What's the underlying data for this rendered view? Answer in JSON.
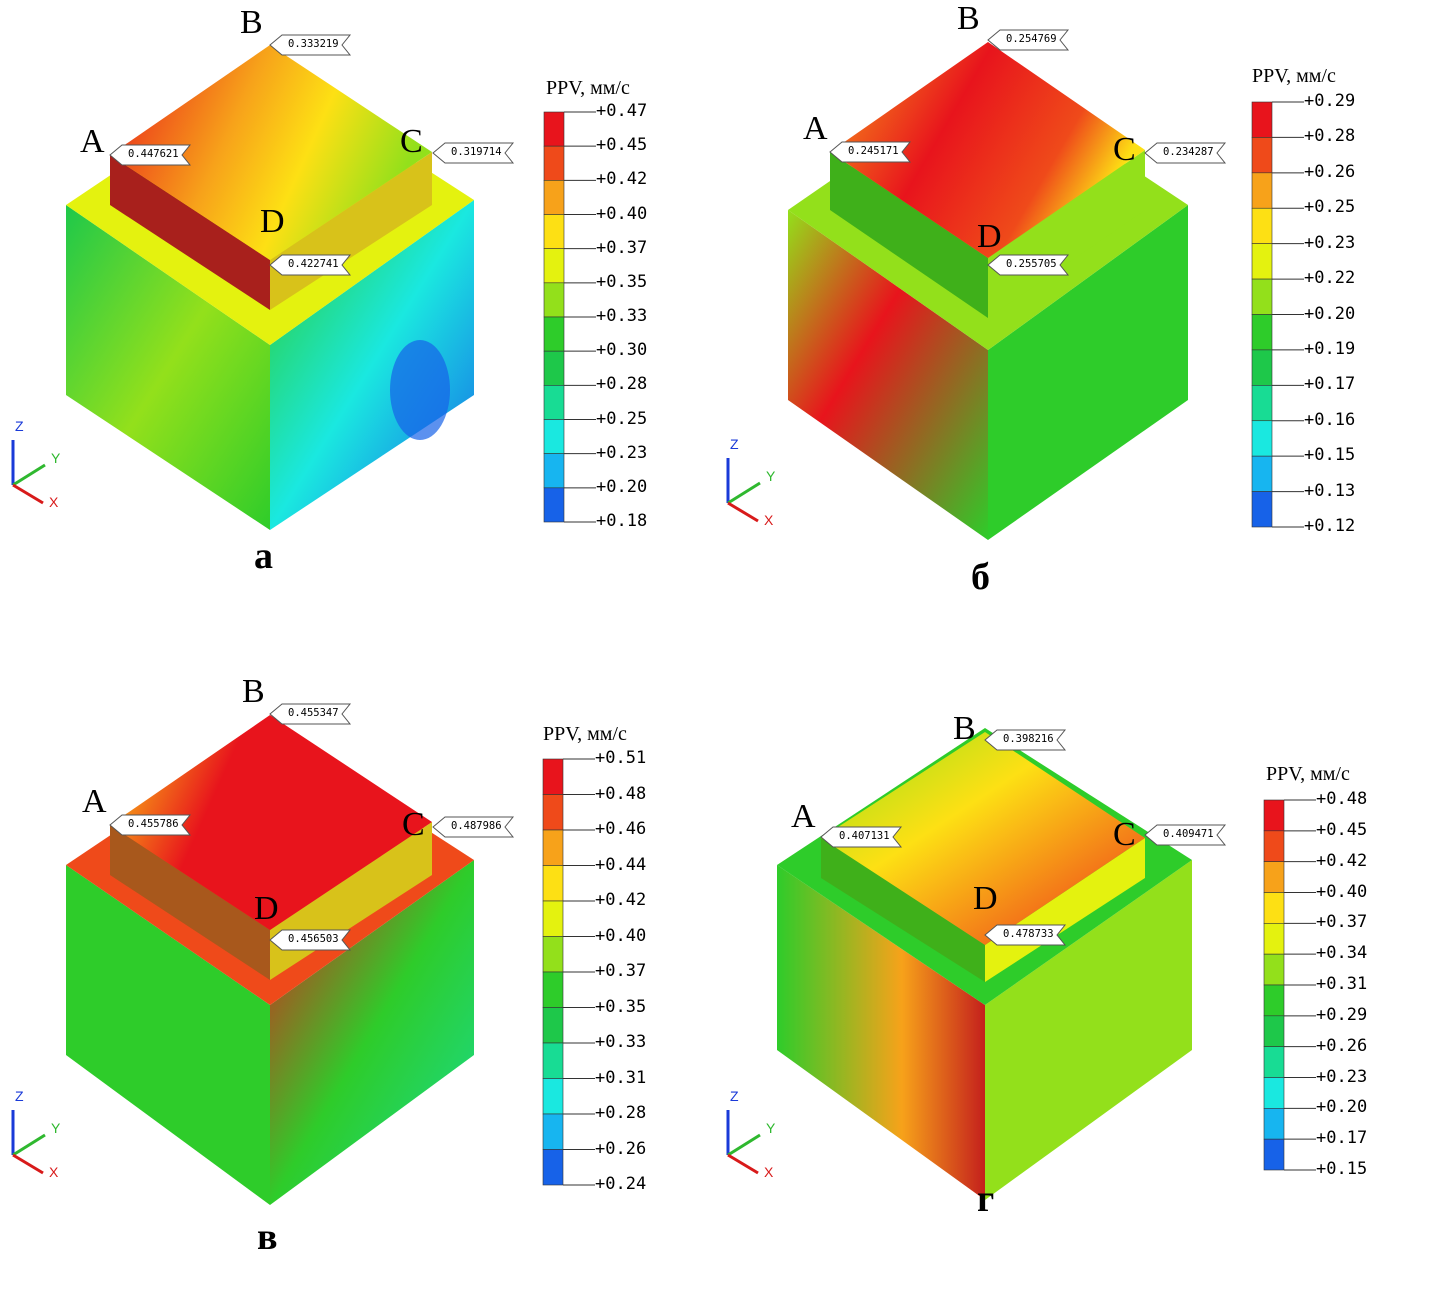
{
  "panels": [
    {
      "label": "а",
      "legend": {
        "title": "PPV, мм/с",
        "ticks": [
          "+0.47",
          "+0.45",
          "+0.42",
          "+0.40",
          "+0.37",
          "+0.35",
          "+0.33",
          "+0.30",
          "+0.28",
          "+0.25",
          "+0.23",
          "+0.20",
          "+0.18"
        ]
      },
      "points": [
        {
          "name": "A",
          "value": "0.447621"
        },
        {
          "name": "B",
          "value": "0.333219"
        },
        {
          "name": "C",
          "value": "0.319714"
        },
        {
          "name": "D",
          "value": "0.422741"
        }
      ]
    },
    {
      "label": "б",
      "legend": {
        "title": "PPV, мм/с",
        "ticks": [
          "+0.29",
          "+0.28",
          "+0.26",
          "+0.25",
          "+0.23",
          "+0.22",
          "+0.20",
          "+0.19",
          "+0.17",
          "+0.16",
          "+0.15",
          "+0.13",
          "+0.12"
        ]
      },
      "points": [
        {
          "name": "A",
          "value": "0.245171"
        },
        {
          "name": "B",
          "value": "0.254769"
        },
        {
          "name": "C",
          "value": "0.234287"
        },
        {
          "name": "D",
          "value": "0.255705"
        }
      ]
    },
    {
      "label": "в",
      "legend": {
        "title": "PPV, мм/с",
        "ticks": [
          "+0.51",
          "+0.48",
          "+0.46",
          "+0.44",
          "+0.42",
          "+0.40",
          "+0.37",
          "+0.35",
          "+0.33",
          "+0.31",
          "+0.28",
          "+0.26",
          "+0.24"
        ]
      },
      "points": [
        {
          "name": "A",
          "value": "0.455786"
        },
        {
          "name": "B",
          "value": "0.455347"
        },
        {
          "name": "C",
          "value": "0.487986"
        },
        {
          "name": "D",
          "value": "0.456503"
        }
      ]
    },
    {
      "label": "г",
      "legend": {
        "title": "PPV, мм/с",
        "ticks": [
          "+0.48",
          "+0.45",
          "+0.42",
          "+0.40",
          "+0.37",
          "+0.34",
          "+0.31",
          "+0.29",
          "+0.26",
          "+0.23",
          "+0.20",
          "+0.17",
          "+0.15"
        ]
      },
      "points": [
        {
          "name": "A",
          "value": "0.407131"
        },
        {
          "name": "B",
          "value": "0.398216"
        },
        {
          "name": "C",
          "value": "0.409471"
        },
        {
          "name": "D",
          "value": "0.478733"
        }
      ]
    }
  ],
  "axes_triad": {
    "x": "X",
    "y": "Y",
    "z": "Z"
  },
  "legend_colors": [
    "#e8141c",
    "#ef4a1a",
    "#f7a21a",
    "#fde014",
    "#e4f20f",
    "#93e01b",
    "#2ecc2a",
    "#1ec84a",
    "#18dc94",
    "#1ae8e0",
    "#17b5f0",
    "#1762e8",
    "#1217e6"
  ]
}
